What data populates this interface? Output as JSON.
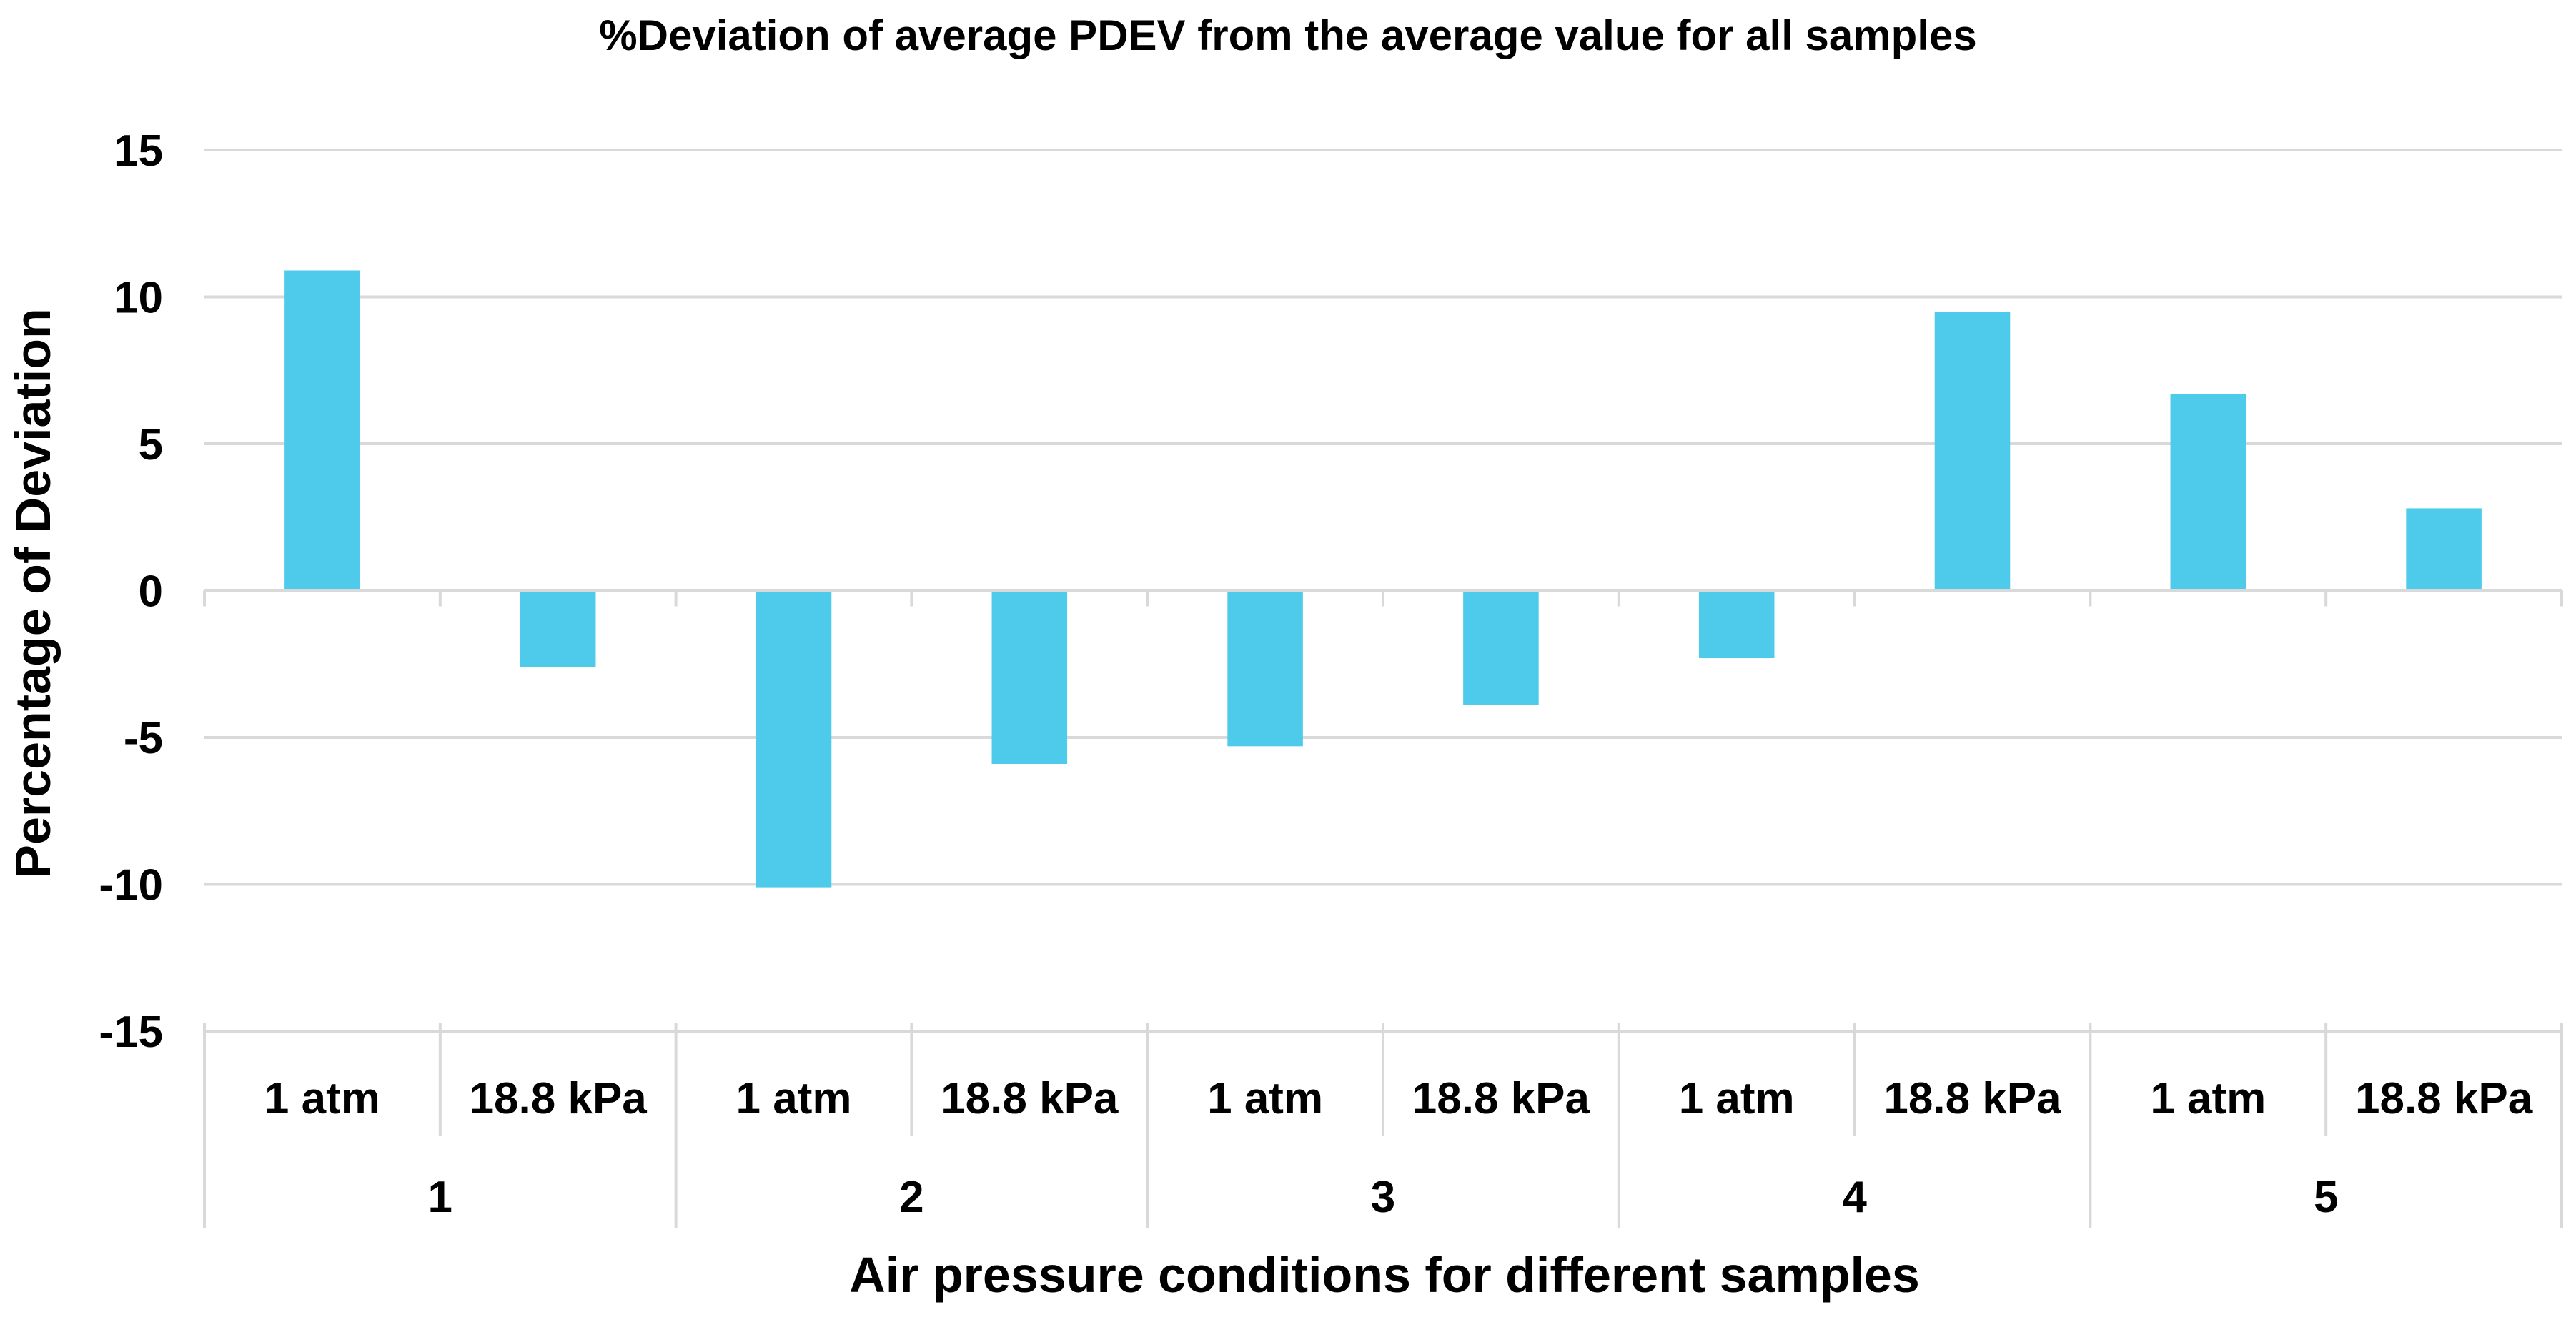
{
  "chart_data": {
    "type": "bar",
    "title": "%Deviation of average PDEV from the average value for all samples",
    "xlabel": "Air pressure conditions for different samples",
    "ylabel": "Percentage of Deviation",
    "ylim": [
      -15,
      15
    ],
    "yticks": [
      15,
      10,
      5,
      0,
      -5,
      -10,
      -15
    ],
    "ytick_labels": [
      "15",
      "10",
      "5",
      "0",
      "-5",
      "-10",
      "-15"
    ],
    "grid": true,
    "legend": "none",
    "groups": [
      "1",
      "2",
      "3",
      "4",
      "5"
    ],
    "categories": [
      {
        "group": "1",
        "label": "1 atm",
        "value": 10.9
      },
      {
        "group": "1",
        "label": "18.8 kPa",
        "value": -2.6
      },
      {
        "group": "2",
        "label": "1 atm",
        "value": -10.1
      },
      {
        "group": "2",
        "label": "18.8 kPa",
        "value": -5.9
      },
      {
        "group": "3",
        "label": "1 atm",
        "value": -5.3
      },
      {
        "group": "3",
        "label": "18.8 kPa",
        "value": -3.9
      },
      {
        "group": "4",
        "label": "1 atm",
        "value": -2.3
      },
      {
        "group": "4",
        "label": "18.8 kPa",
        "value": 9.5
      },
      {
        "group": "5",
        "label": "1 atm",
        "value": 6.7
      },
      {
        "group": "5",
        "label": "18.8 kPa",
        "value": 2.8
      }
    ],
    "series": [
      {
        "name": "%Deviation",
        "color": "#4ECAEB",
        "values": [
          10.9,
          -2.6,
          -10.1,
          -5.9,
          -5.3,
          -3.9,
          -2.3,
          9.5,
          6.7,
          2.8
        ]
      }
    ],
    "gridline_color": "#D9D9D9"
  }
}
